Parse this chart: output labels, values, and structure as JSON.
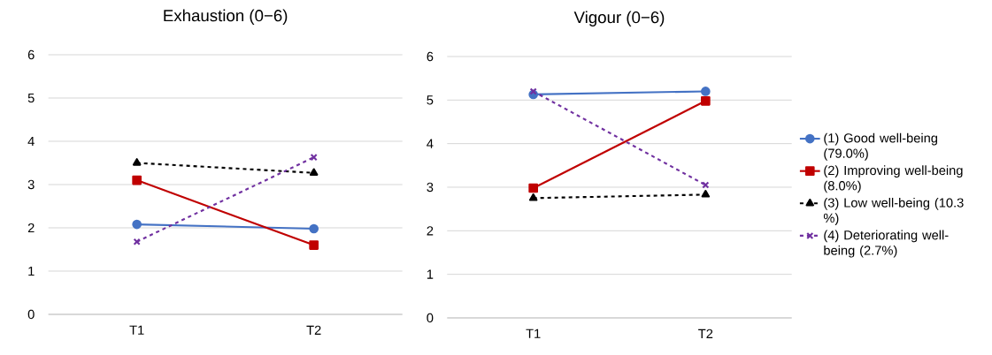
{
  "chart_data": [
    {
      "type": "line",
      "title": "Exhaustion (0−6)",
      "categories": [
        "T1",
        "T2"
      ],
      "ylim": [
        0,
        6
      ],
      "yticks": [
        0,
        1,
        2,
        3,
        4,
        5,
        6
      ],
      "grid": "y",
      "legend": false,
      "series": [
        {
          "color": "#4472c4",
          "marker": "circle",
          "line_style": "solid",
          "values": [
            2.08,
            1.98
          ]
        },
        {
          "color": "#c00000",
          "marker": "square",
          "line_style": "solid",
          "values": [
            3.1,
            1.6
          ]
        },
        {
          "color": "#000000",
          "marker": "triangle",
          "line_style": "dashed",
          "values": [
            3.5,
            3.27
          ]
        },
        {
          "color": "#7030a0",
          "marker": "cross",
          "line_style": "dashed",
          "values": [
            1.68,
            3.63
          ]
        }
      ]
    },
    {
      "type": "line",
      "title": "Vigour (0−6)",
      "categories": [
        "T1",
        "T2"
      ],
      "ylim": [
        0,
        6
      ],
      "yticks": [
        0,
        1,
        2,
        3,
        4,
        5,
        6
      ],
      "grid": "y",
      "legend": "right",
      "series": [
        {
          "name": "(1) Good well-being (79.0%)",
          "color": "#4472c4",
          "marker": "circle",
          "line_style": "solid",
          "values": [
            5.13,
            5.2
          ]
        },
        {
          "name": "(2) Improving well-being (8.0%)",
          "color": "#c00000",
          "marker": "square",
          "line_style": "solid",
          "values": [
            2.98,
            4.98
          ]
        },
        {
          "name": "(3) Low well-being (10.3 %)",
          "color": "#000000",
          "marker": "triangle",
          "line_style": "dashed",
          "values": [
            2.75,
            2.83
          ]
        },
        {
          "name": "(4) Deteriorating well-being (2.7%)",
          "color": "#7030a0",
          "marker": "cross",
          "line_style": "dashed",
          "values": [
            5.2,
            3.05
          ]
        }
      ]
    }
  ]
}
